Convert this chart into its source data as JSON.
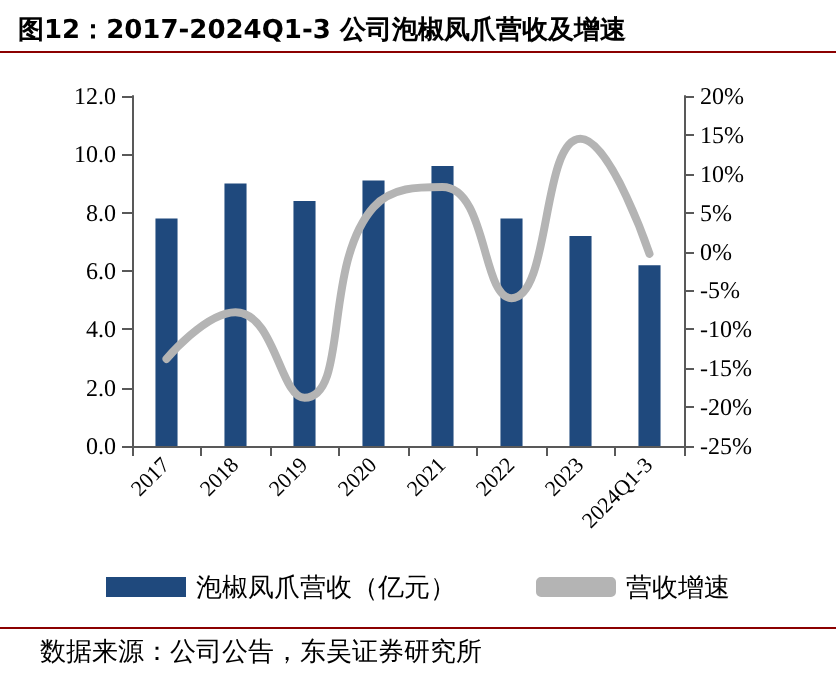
{
  "chart_data": {
    "type": "bar",
    "title": "图12：2017-2024Q1-3 公司泡椒凤爪营收及增速",
    "categories": [
      "2017",
      "2018",
      "2019",
      "2020",
      "2021",
      "2022",
      "2023",
      "2024Q1-3"
    ],
    "series": [
      {
        "name": "泡椒凤爪营收（亿元）",
        "color": "#1f497d",
        "values": [
          7.8,
          9.0,
          8.4,
          9.1,
          9.6,
          7.8,
          7.2,
          6.2
        ]
      },
      {
        "name": "营收增速",
        "type": "line",
        "axis": "y2",
        "color": "#b4b4b4",
        "values": [
          -13.8,
          -7.8,
          -18.8,
          5.7,
          8.3,
          -6.0,
          14.5,
          -0.3
        ]
      }
    ],
    "ylim": [
      0,
      12
    ],
    "yticks": [
      {
        "value": 0,
        "label": "0.0"
      },
      {
        "value": 2,
        "label": "2.0"
      },
      {
        "value": 4,
        "label": "4.0"
      },
      {
        "value": 6,
        "label": "6.0"
      },
      {
        "value": 8,
        "label": "8.0"
      },
      {
        "value": 10,
        "label": "10.0"
      },
      {
        "value": 12,
        "label": "12.0"
      }
    ],
    "y2lim": [
      -25,
      20
    ],
    "y2ticks": [
      {
        "value": -25,
        "label": "-25%"
      },
      {
        "value": -20,
        "label": "-20%"
      },
      {
        "value": -15,
        "label": "-15%"
      },
      {
        "value": -10,
        "label": "-10%"
      },
      {
        "value": -5,
        "label": "-5%"
      },
      {
        "value": 0,
        "label": "0%"
      },
      {
        "value": 5,
        "label": "5%"
      },
      {
        "value": 10,
        "label": "10%"
      },
      {
        "value": 15,
        "label": "15%"
      },
      {
        "value": 20,
        "label": "20%"
      }
    ],
    "grid": false,
    "legend": "bottom",
    "marker": "none",
    "line_style": "solid",
    "annotations": [
      "数据来源：公司公告，东吴证券研究所"
    ]
  }
}
